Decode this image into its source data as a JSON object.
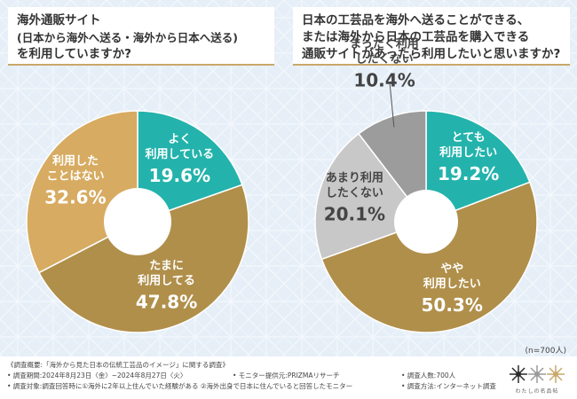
{
  "questions": {
    "left": {
      "line1": "海外通販サイト",
      "line2": "(日本から海外へ送る・海外から日本へ送る)",
      "line3": "を利用していますか?"
    },
    "right": {
      "line1": "日本の工芸品を海外へ送ることができる、",
      "line2": "または海外から日本の工芸品を購入できる",
      "line3": "通販サイトがあったら利用したいと思いますか?"
    }
  },
  "chart_data": [
    {
      "type": "pie",
      "donut": true,
      "slices": [
        {
          "label": "よく\n利用している",
          "value": 19.6,
          "value_text": "19.6%",
          "color": "#23b3ac"
        },
        {
          "label": "たまに\n利用してる",
          "value": 47.8,
          "value_text": "47.8%",
          "color": "#b08f4a"
        },
        {
          "label": "利用した\nことはない",
          "value": 32.6,
          "value_text": "32.6%",
          "color": "#d7ab61"
        }
      ]
    },
    {
      "type": "pie",
      "donut": true,
      "slices": [
        {
          "label": "とても\n利用したい",
          "value": 19.2,
          "value_text": "19.2%",
          "color": "#23b3ac"
        },
        {
          "label": "やや\n利用したい",
          "value": 50.3,
          "value_text": "50.3%",
          "color": "#b08f4a"
        },
        {
          "label": "あまり利用\nしたくない",
          "value": 20.1,
          "value_text": "20.1%",
          "color": "#c8c8c8"
        },
        {
          "label": "まったく利用\nしたくない",
          "value": 10.4,
          "value_text": "10.4%",
          "color": "#9c9c9c"
        }
      ]
    }
  ],
  "sample_note": "(n=700人)",
  "footer": {
    "line1": "《調査概要:「海外から見た日本の伝統工芸品のイメージ」に関する調査》",
    "period": "• 調査期間:2024年8月23日〈金〉~2024年8月27日〈火〉",
    "provider": "• モニター提供元:PRIZMAリサーチ",
    "count": "• 調査人数:700人",
    "target": "• 調査対象:調査回答時に①海外に2年以上住んでいた経験がある ②海外出身で日本に住んでいると回答したモニター",
    "method": "• 調査方法:インターネット調査",
    "logo_text": "わたしの名品帖"
  }
}
